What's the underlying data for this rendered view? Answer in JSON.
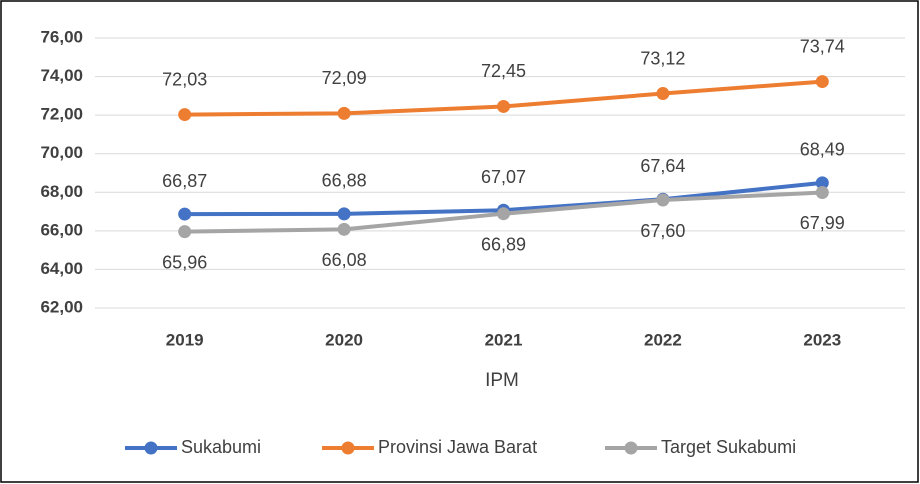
{
  "chart_data": {
    "type": "line",
    "x_label": "IPM",
    "categories": [
      "2019",
      "2020",
      "2021",
      "2022",
      "2023"
    ],
    "series": [
      {
        "name": "Sukabumi",
        "color": "#4472c4",
        "values": [
          66.87,
          66.88,
          67.07,
          67.64,
          68.49
        ],
        "value_labels": [
          "66,87",
          "66,88",
          "67,07",
          "67,64",
          "68,49"
        ]
      },
      {
        "name": "Provinsi Jawa Barat",
        "color": "#ed7d31",
        "values": [
          72.03,
          72.09,
          72.45,
          73.12,
          73.74
        ],
        "value_labels": [
          "72,03",
          "72,09",
          "72,45",
          "73,12",
          "73,74"
        ]
      },
      {
        "name": "Target Sukabumi",
        "color": "#a5a5a5",
        "values": [
          65.96,
          66.08,
          66.89,
          67.6,
          67.99
        ],
        "value_labels": [
          "65,96",
          "66,08",
          "66,89",
          "67,60",
          "67,99"
        ]
      }
    ],
    "ylim": [
      62,
      76
    ],
    "yticks": [
      {
        "value": 62,
        "label": "62,00"
      },
      {
        "value": 64,
        "label": "64,00"
      },
      {
        "value": 66,
        "label": "66,00"
      },
      {
        "value": 68,
        "label": "68,00"
      },
      {
        "value": 70,
        "label": "70,00"
      },
      {
        "value": 72,
        "label": "72,00"
      },
      {
        "value": 74,
        "label": "74,00"
      },
      {
        "value": 76,
        "label": "76,00"
      }
    ],
    "grid": true,
    "legend": "bottom"
  }
}
